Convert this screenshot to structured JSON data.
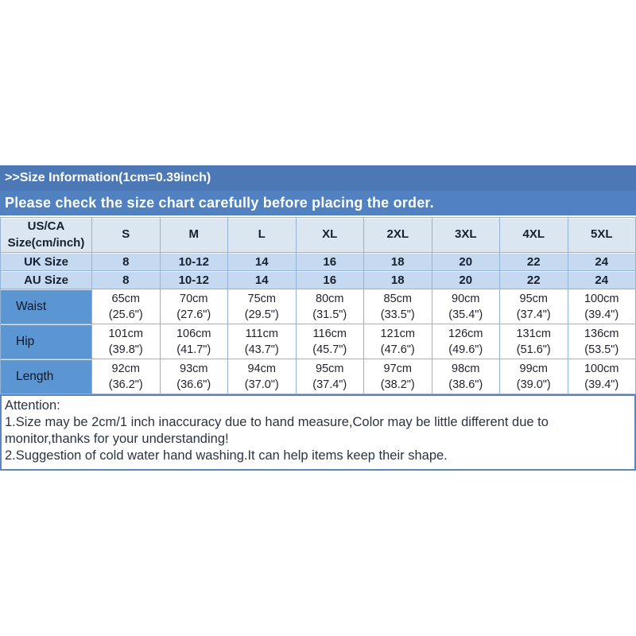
{
  "header": {
    "size_info_title": ">>Size Information(1cm=0.39inch)",
    "notice": "Please check the size chart carefully before placing the order."
  },
  "table": {
    "corner": {
      "line1": "US/CA",
      "line2": "Size(cm/inch)"
    },
    "size_columns": [
      "S",
      "M",
      "L",
      "XL",
      "2XL",
      "3XL",
      "4XL",
      "5XL"
    ],
    "uk_row": {
      "label": "UK Size",
      "values": [
        "8",
        "10-12",
        "14",
        "16",
        "18",
        "20",
        "22",
        "24"
      ]
    },
    "au_row": {
      "label": "AU Size",
      "values": [
        "8",
        "10-12",
        "14",
        "16",
        "18",
        "20",
        "22",
        "24"
      ]
    },
    "measure_rows": [
      {
        "label": "Waist",
        "cm": [
          "65cm",
          "70cm",
          "75cm",
          "80cm",
          "85cm",
          "90cm",
          "95cm",
          "100cm"
        ],
        "inch": [
          "(25.6\")",
          "(27.6\")",
          "(29.5\")",
          "(31.5\")",
          "(33.5\")",
          "(35.4\")",
          "(37.4\")",
          "(39.4\")"
        ]
      },
      {
        "label": "Hip",
        "cm": [
          "101cm",
          "106cm",
          "111cm",
          "116cm",
          "121cm",
          "126cm",
          "131cm",
          "136cm"
        ],
        "inch": [
          "(39.8\")",
          "(41.7\")",
          "(43.7\")",
          "(45.7\")",
          "(47.6\")",
          "(49.6\")",
          "(51.6\")",
          "(53.5\")"
        ]
      },
      {
        "label": "Length",
        "cm": [
          "92cm",
          "93cm",
          "94cm",
          "95cm",
          "97cm",
          "98cm",
          "99cm",
          "100cm"
        ],
        "inch": [
          "(36.2\")",
          "(36.6\")",
          "(37.0\")",
          "(37.4\")",
          "(38.2\")",
          "(38.6\")",
          "(39.0\")",
          "(39.4\")"
        ]
      }
    ]
  },
  "attention": {
    "title": "Attention:",
    "note1": "1.Size may be 2cm/1 inch inaccuracy due to hand measure,Color may be little different due to monitor,thanks for your understanding!",
    "note2": "2.Suggestion of cold water hand washing.It can help items keep their shape."
  },
  "colors": {
    "title_bar": "#4c79b6",
    "notice_bar": "#5181c0",
    "header_row_bg": "#dce6f1",
    "uk_au_row_bg": "#c5d9f1",
    "measure_label_bg": "#5b96d3",
    "table_border": "#95b3d7",
    "attention_border": "#5b87c0"
  }
}
